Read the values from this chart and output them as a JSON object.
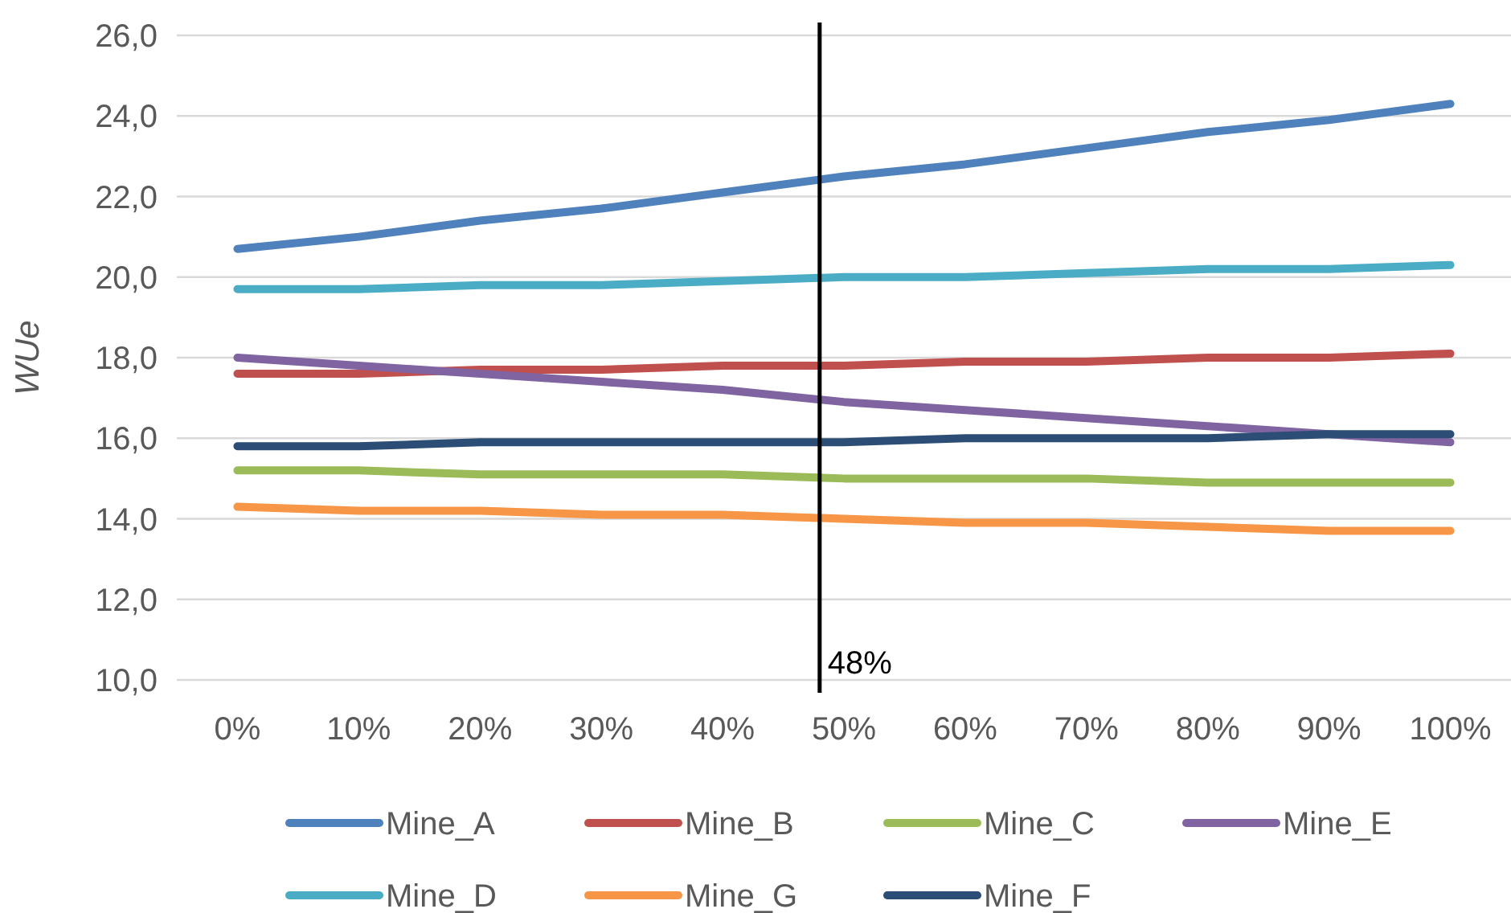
{
  "chart_data": {
    "type": "line",
    "ylabel": "WUe",
    "x": [
      0,
      10,
      20,
      30,
      40,
      50,
      60,
      70,
      80,
      90,
      100
    ],
    "xlim": [
      -5,
      105
    ],
    "xticks": [
      {
        "value": 0,
        "label": "0%"
      },
      {
        "value": 10,
        "label": "10%"
      },
      {
        "value": 20,
        "label": "20%"
      },
      {
        "value": 30,
        "label": "30%"
      },
      {
        "value": 40,
        "label": "40%"
      },
      {
        "value": 50,
        "label": "50%"
      },
      {
        "value": 60,
        "label": "60%"
      },
      {
        "value": 70,
        "label": "70%"
      },
      {
        "value": 80,
        "label": "80%"
      },
      {
        "value": 90,
        "label": "90%"
      },
      {
        "value": 100,
        "label": "100%"
      }
    ],
    "ylim": [
      10,
      26
    ],
    "yticks": [
      {
        "value": 10,
        "label": "10,0"
      },
      {
        "value": 12,
        "label": "12,0"
      },
      {
        "value": 14,
        "label": "14,0"
      },
      {
        "value": 16,
        "label": "16,0"
      },
      {
        "value": 18,
        "label": "18,0"
      },
      {
        "value": 20,
        "label": "20,0"
      },
      {
        "value": 22,
        "label": "22,0"
      },
      {
        "value": 24,
        "label": "24,0"
      },
      {
        "value": 26,
        "label": "26,0"
      }
    ],
    "grid": "y",
    "legend": "bottom",
    "marker": "none",
    "line_style": "solid",
    "ref_lines": [
      {
        "axis": "x",
        "value": 48,
        "label": "48%",
        "color": "#000000"
      }
    ],
    "series": [
      {
        "name": "Mine_A",
        "color": "#4f81bd",
        "values": [
          20.7,
          21.0,
          21.4,
          21.7,
          22.1,
          22.5,
          22.8,
          23.2,
          23.6,
          23.9,
          24.3
        ]
      },
      {
        "name": "Mine_B",
        "color": "#c0504d",
        "values": [
          17.6,
          17.6,
          17.7,
          17.7,
          17.8,
          17.8,
          17.9,
          17.9,
          18.0,
          18.0,
          18.1
        ]
      },
      {
        "name": "Mine_C",
        "color": "#9bbb59",
        "values": [
          15.2,
          15.2,
          15.1,
          15.1,
          15.1,
          15.0,
          15.0,
          15.0,
          14.9,
          14.9,
          14.9
        ]
      },
      {
        "name": "Mine_E",
        "color": "#8064a2",
        "values": [
          18.0,
          17.8,
          17.6,
          17.4,
          17.2,
          16.9,
          16.7,
          16.5,
          16.3,
          16.1,
          15.9
        ]
      },
      {
        "name": "Mine_D",
        "color": "#4bacc6",
        "values": [
          19.7,
          19.7,
          19.8,
          19.8,
          19.9,
          20.0,
          20.0,
          20.1,
          20.2,
          20.2,
          20.3
        ]
      },
      {
        "name": "Mine_G",
        "color": "#f79646",
        "values": [
          14.3,
          14.2,
          14.2,
          14.1,
          14.1,
          14.0,
          13.9,
          13.9,
          13.8,
          13.7,
          13.7
        ]
      },
      {
        "name": "Mine_F",
        "color": "#2c4d75",
        "values": [
          15.8,
          15.8,
          15.9,
          15.9,
          15.9,
          15.9,
          16.0,
          16.0,
          16.0,
          16.1,
          16.1
        ]
      }
    ]
  }
}
